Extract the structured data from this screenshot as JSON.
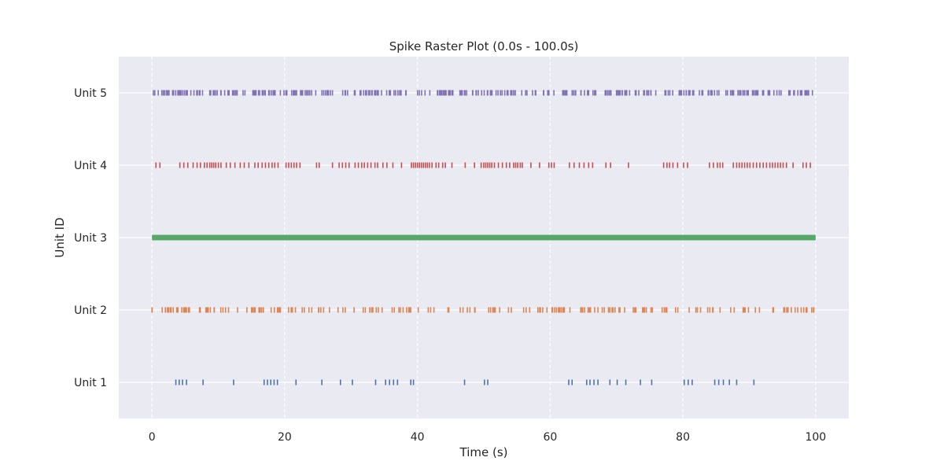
{
  "chart_data": {
    "type": "scatter",
    "title": "Spike Raster Plot (0.0s - 100.0s)",
    "xlabel": "Time (s)",
    "ylabel": "Unit ID",
    "xlim": [
      -5,
      105
    ],
    "ylim": [
      0.5,
      5.5
    ],
    "x_ticks": [
      0,
      20,
      40,
      60,
      80,
      100
    ],
    "x_tick_labels": [
      "0",
      "20",
      "40",
      "60",
      "80",
      "100"
    ],
    "y_ticks": [
      1,
      2,
      3,
      4,
      5
    ],
    "grid": true,
    "background_color": "#eaeaf2",
    "series": [
      {
        "name": "Unit 1",
        "unit": 1,
        "color": "#4c72b0",
        "spike_times": [
          3.6,
          4.1,
          4.6,
          5.2,
          7.7,
          12.3,
          16.9,
          17.4,
          17.9,
          18.4,
          18.9,
          21.7,
          25.6,
          28.4,
          30.2,
          33.7,
          35.2,
          35.8,
          36.4,
          37.0,
          39.0,
          39.4,
          47.1,
          50.1,
          50.6,
          62.8,
          63.3,
          65.5,
          66.0,
          66.6,
          67.2,
          69.0,
          70.1,
          71.4,
          73.6,
          75.3,
          80.2,
          80.8,
          81.4,
          84.8,
          85.4,
          86.1,
          87.0,
          88.1,
          90.7
        ]
      },
      {
        "name": "Unit 2",
        "unit": 2,
        "color": "#dd8452",
        "rate_hz": 2.5,
        "seed": 7,
        "gaps": [
          [
            0.2,
            0.8
          ],
          [
            6.3,
            6.9
          ],
          [
            13.0,
            13.9
          ],
          [
            20.0,
            20.5
          ],
          [
            40.8,
            41.4
          ],
          [
            52.6,
            53.2
          ],
          [
            71.8,
            72.4
          ],
          [
            77.8,
            78.3
          ],
          [
            81.2,
            81.9
          ],
          [
            84.7,
            85.4
          ],
          [
            86.0,
            86.8
          ],
          [
            88.1,
            88.7
          ],
          [
            91.8,
            92.4
          ]
        ]
      },
      {
        "name": "Unit 3",
        "unit": 3,
        "color": "#55a868",
        "continuous": true,
        "range": [
          0,
          100
        ]
      },
      {
        "name": "Unit 4",
        "unit": 4,
        "color": "#c44e52",
        "spike_times": [
          0.6,
          1.2,
          4.2,
          4.8,
          5.4,
          6.2,
          6.8,
          7.3,
          7.9,
          8.3,
          8.7,
          9.0,
          9.3,
          9.6,
          10.0,
          10.4,
          11.2,
          11.8,
          12.5,
          13.3,
          13.9,
          14.6,
          15.5,
          16.0,
          16.6,
          17.1,
          17.6,
          18.1,
          18.5,
          19.0,
          20.2,
          20.6,
          21.0,
          21.4,
          21.8,
          22.3,
          24.8,
          25.2,
          27.2,
          28.2,
          28.7,
          29.2,
          29.7,
          30.6,
          31.1,
          31.6,
          32.0,
          32.5,
          33.0,
          33.6,
          34.0,
          34.8,
          35.4,
          36.3,
          37.6,
          39.1,
          39.4,
          39.7,
          40.0,
          40.3,
          40.6,
          40.9,
          41.2,
          41.5,
          41.8,
          42.2,
          42.8,
          43.2,
          43.8,
          44.2,
          45.2,
          47.2,
          48.6,
          49.6,
          50.0,
          50.3,
          50.6,
          50.9,
          51.2,
          51.6,
          52.2,
          52.8,
          53.4,
          53.9,
          54.5,
          54.8,
          55.1,
          55.5,
          55.8,
          57.1,
          58.4,
          59.8,
          60.2,
          60.6,
          62.9,
          63.6,
          64.4,
          65.1,
          65.8,
          66.4,
          68.4,
          69.1,
          71.8,
          77.1,
          77.6,
          78.0,
          78.5,
          79.2,
          80.1,
          80.7,
          84.0,
          84.6,
          85.2,
          85.6,
          86.0,
          87.6,
          88.1,
          88.5,
          88.9,
          89.3,
          89.7,
          90.1,
          90.6,
          91.1,
          91.6,
          92.1,
          92.6,
          93.1,
          93.5,
          93.9,
          94.3,
          94.7,
          95.1,
          95.6,
          96.6,
          98.1,
          98.6,
          99.2
        ]
      },
      {
        "name": "Unit 5",
        "unit": 5,
        "color": "#8172b3",
        "rate_hz": 3.5,
        "seed": 11,
        "gaps": [
          [
            0.5,
            0.9
          ],
          [
            13.1,
            13.6
          ],
          [
            37.6,
            38.0
          ],
          [
            47.6,
            48.1
          ],
          [
            56.7,
            57.2
          ],
          [
            58.1,
            58.5
          ],
          [
            65.2,
            65.6
          ],
          [
            72.0,
            72.5
          ],
          [
            76.4,
            76.8
          ],
          [
            90.0,
            90.4
          ],
          [
            93.1,
            93.5
          ],
          [
            95.4,
            95.8
          ]
        ]
      }
    ]
  }
}
